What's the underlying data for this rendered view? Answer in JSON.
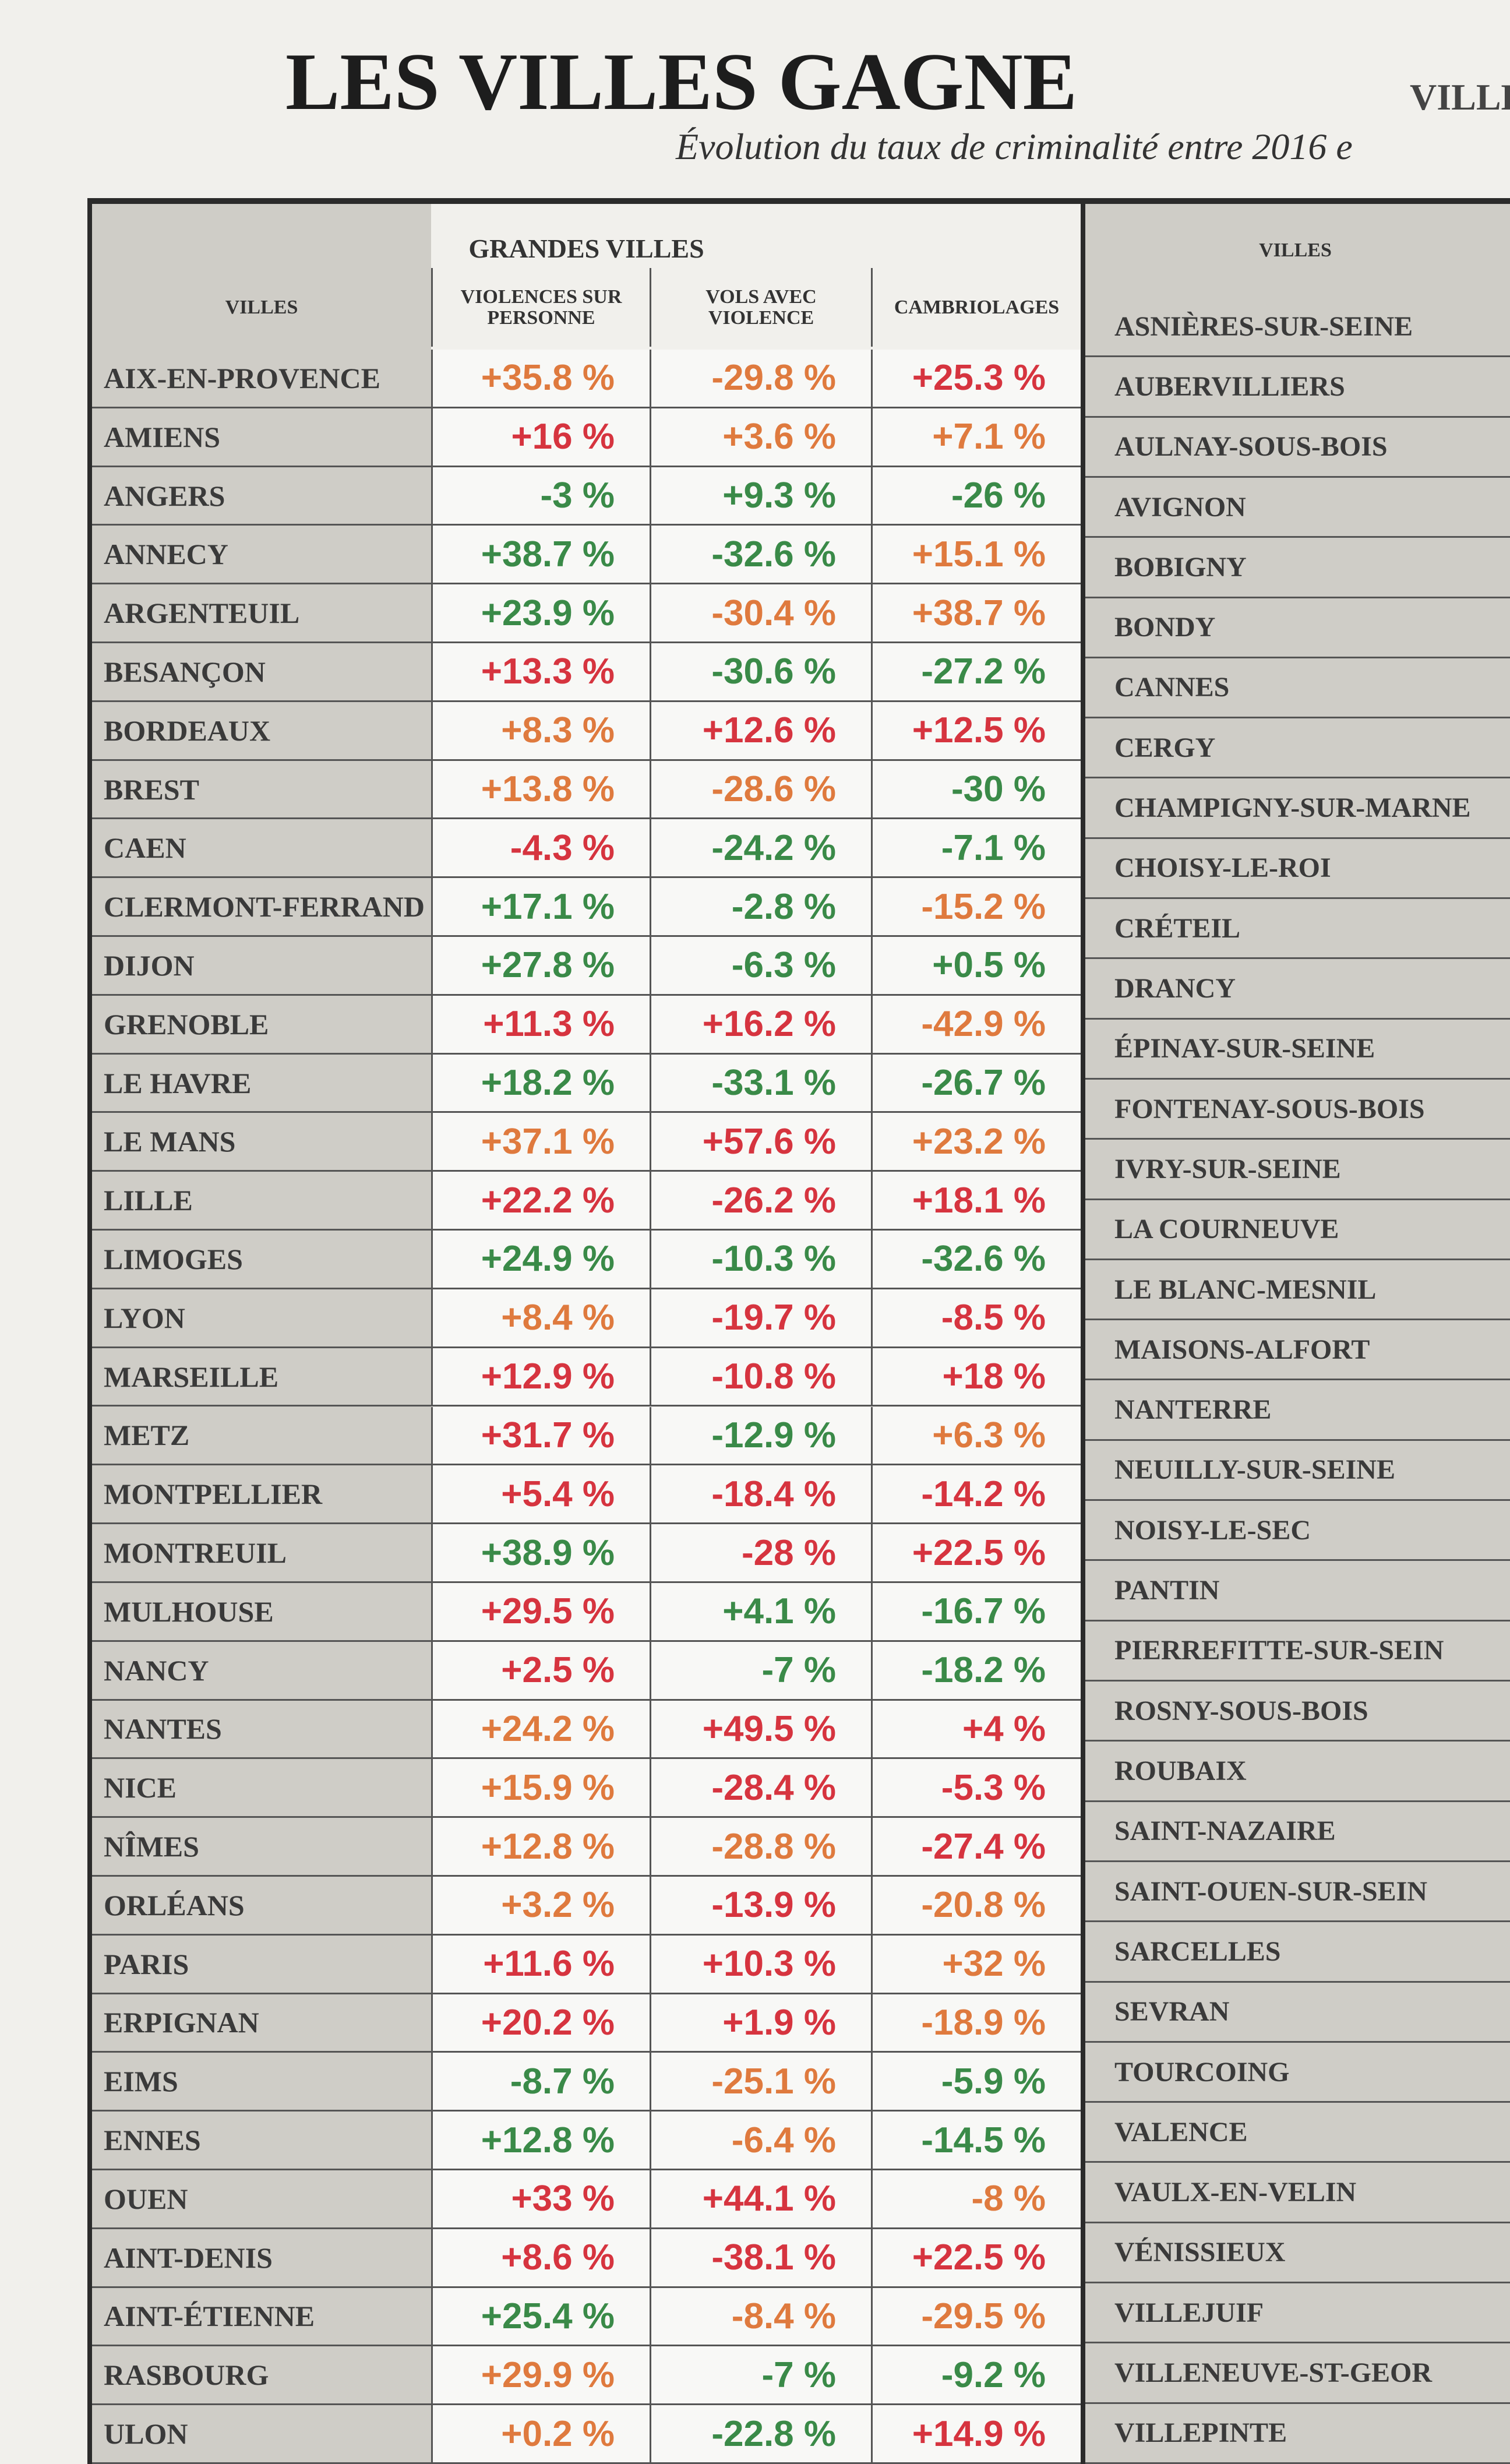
{
  "header": {
    "title": "LES VILLES GAGNE",
    "subtitle": "Évolution du taux de criminalité entre 2016 e",
    "side_label": "VILLE"
  },
  "left_table": {
    "caption": "GRANDES VILLES",
    "columns": [
      "VILLES",
      "VIOLENCES SUR PERSONNE",
      "VOLS AVEC VIOLENCE",
      "CAMBRIOLAGES"
    ],
    "tone_colors": {
      "R": "#d6343f",
      "O": "#df7a3e",
      "G": "#3a8a48"
    },
    "rows": [
      [
        "AIX-EN-PROVENCE",
        "+35.8 %",
        "-29.8 %",
        "+25.3 %"
      ],
      [
        "AMIENS",
        "+16 %",
        "+3.6 %",
        "+7.1 %"
      ],
      [
        "ANGERS",
        "-3 %",
        "+9.3 %",
        "-26 %"
      ],
      [
        "ANNECY",
        "+38.7 %",
        "-32.6 %",
        "+15.1 %"
      ],
      [
        "ARGENTEUIL",
        "+23.9 %",
        "-30.4 %",
        "+38.7 %"
      ],
      [
        "BESANÇON",
        "+13.3 %",
        "-30.6 %",
        "-27.2 %"
      ],
      [
        "BORDEAUX",
        "+8.3 %",
        "+12.6 %",
        "+12.5 %"
      ],
      [
        "BREST",
        "+13.8 %",
        "-28.6 %",
        "-30 %"
      ],
      [
        "CAEN",
        "-4.3 %",
        "-24.2 %",
        "-7.1 %"
      ],
      [
        "CLERMONT-FERRAND",
        "+17.1 %",
        "-2.8 %",
        "-15.2 %"
      ],
      [
        "DIJON",
        "+27.8 %",
        "-6.3 %",
        "+0.5 %"
      ],
      [
        "GRENOBLE",
        "+11.3 %",
        "+16.2 %",
        "-42.9 %"
      ],
      [
        "LE HAVRE",
        "+18.2 %",
        "-33.1 %",
        "-26.7 %"
      ],
      [
        "LE MANS",
        "+37.1 %",
        "+57.6 %",
        "+23.2 %"
      ],
      [
        "LILLE",
        "+22.2 %",
        "-26.2 %",
        "+18.1 %"
      ],
      [
        "LIMOGES",
        "+24.9 %",
        "-10.3 %",
        "-32.6 %"
      ],
      [
        "LYON",
        "+8.4 %",
        "-19.7 %",
        "-8.5 %"
      ],
      [
        "MARSEILLE",
        "+12.9 %",
        "-10.8 %",
        "+18 %"
      ],
      [
        "METZ",
        "+31.7 %",
        "-12.9 %",
        "+6.3 %"
      ],
      [
        "MONTPELLIER",
        "+5.4 %",
        "-18.4 %",
        "-14.2 %"
      ],
      [
        "MONTREUIL",
        "+38.9 %",
        "-28 %",
        "+22.5 %"
      ],
      [
        "MULHOUSE",
        "+29.5 %",
        "+4.1 %",
        "-16.7 %"
      ],
      [
        "NANCY",
        "+2.5 %",
        "-7 %",
        "-18.2 %"
      ],
      [
        "NANTES",
        "+24.2 %",
        "+49.5 %",
        "+4 %"
      ],
      [
        "NICE",
        "+15.9 %",
        "-28.4 %",
        "-5.3 %"
      ],
      [
        "NÎMES",
        "+12.8 %",
        "-28.8 %",
        "-27.4 %"
      ],
      [
        "ORLÉANS",
        "+3.2 %",
        "-13.9 %",
        "-20.8 %"
      ],
      [
        "PARIS",
        "+11.6 %",
        "+10.3 %",
        "+32 %"
      ],
      [
        "ERPIGNAN",
        "+20.2 %",
        "+1.9 %",
        "-18.9 %"
      ],
      [
        "EIMS",
        "-8.7 %",
        "-25.1 %",
        "-5.9 %"
      ],
      [
        "ENNES",
        "+12.8 %",
        "-6.4 %",
        "-14.5 %"
      ],
      [
        "OUEN",
        "+33 %",
        "+44.1 %",
        "-8 %"
      ],
      [
        "AINT-DENIS",
        "+8.6 %",
        "-38.1 %",
        "+22.5 %"
      ],
      [
        "AINT-ÉTIENNE",
        "+25.4 %",
        "-8.4 %",
        "-29.5 %"
      ],
      [
        "RASBOURG",
        "+29.9 %",
        "-7 %",
        "-9.2 %"
      ],
      [
        "ULON",
        "+0.2 %",
        "-22.8 %",
        "+14.9 %"
      ]
    ],
    "tones": [
      [
        "O",
        "O",
        "R"
      ],
      [
        "R",
        "O",
        "O"
      ],
      [
        "G",
        "G",
        "G"
      ],
      [
        "G",
        "G",
        "O"
      ],
      [
        "G",
        "O",
        "O"
      ],
      [
        "R",
        "G",
        "G"
      ],
      [
        "O",
        "R",
        "R"
      ],
      [
        "O",
        "O",
        "G"
      ],
      [
        "R",
        "G",
        "G"
      ],
      [
        "G",
        "G",
        "O"
      ],
      [
        "G",
        "G",
        "G"
      ],
      [
        "R",
        "R",
        "O"
      ],
      [
        "G",
        "G",
        "G"
      ],
      [
        "O",
        "R",
        "O"
      ],
      [
        "R",
        "R",
        "R"
      ],
      [
        "G",
        "G",
        "G"
      ],
      [
        "O",
        "R",
        "R"
      ],
      [
        "R",
        "R",
        "R"
      ],
      [
        "R",
        "G",
        "O"
      ],
      [
        "R",
        "R",
        "R"
      ],
      [
        "G",
        "R",
        "R"
      ],
      [
        "R",
        "G",
        "G"
      ],
      [
        "R",
        "G",
        "G"
      ],
      [
        "O",
        "R",
        "R"
      ],
      [
        "O",
        "R",
        "R"
      ],
      [
        "O",
        "O",
        "R"
      ],
      [
        "O",
        "R",
        "O"
      ],
      [
        "R",
        "R",
        "O"
      ],
      [
        "R",
        "R",
        "O"
      ],
      [
        "G",
        "O",
        "G"
      ],
      [
        "G",
        "O",
        "G"
      ],
      [
        "R",
        "R",
        "O"
      ],
      [
        "R",
        "R",
        "R"
      ],
      [
        "G",
        "O",
        "O"
      ],
      [
        "O",
        "G",
        "G"
      ],
      [
        "O",
        "G",
        "R"
      ]
    ]
  },
  "right_table": {
    "column": "VILLES",
    "rows": [
      "ASNIÈRES-SUR-SEINE",
      "AUBERVILLIERS",
      "AULNAY-SOUS-BOIS",
      "AVIGNON",
      "BOBIGNY",
      "BONDY",
      "CANNES",
      "CERGY",
      "CHAMPIGNY-SUR-MARNE",
      "CHOISY-LE-ROI",
      "CRÉTEIL",
      "DRANCY",
      "ÉPINAY-SUR-SEINE",
      "FONTENAY-SOUS-BOIS",
      "IVRY-SUR-SEINE",
      "LA COURNEUVE",
      "LE BLANC-MESNIL",
      "MAISONS-ALFORT",
      "NANTERRE",
      "NEUILLY-SUR-SEINE",
      "NOISY-LE-SEC",
      "PANTIN",
      "PIERREFITTE-SUR-SEIN",
      "ROSNY-SOUS-BOIS",
      "ROUBAIX",
      "SAINT-NAZAIRE",
      "SAINT-OUEN-SUR-SEIN",
      "SARCELLES",
      "SEVRAN",
      "TOURCOING",
      "VALENCE",
      "VAULX-EN-VELIN",
      "VÉNISSIEUX",
      "VILLEJUIF",
      "VILLENEUVE-ST-GEOR",
      "VILLEPINTE"
    ]
  }
}
